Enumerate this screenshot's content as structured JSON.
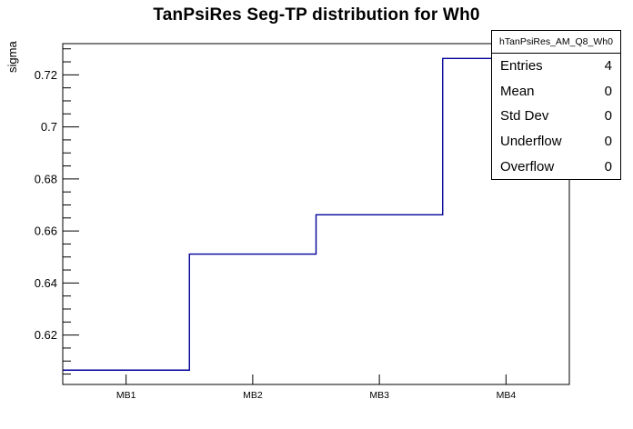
{
  "chart_data": {
    "type": "step",
    "title": "TanPsiRes Seg-TP distribution for Wh0",
    "ylabel": "sigma",
    "xlabel": "",
    "categories": [
      "MB1",
      "MB2",
      "MB3",
      "MB4"
    ],
    "values": [
      0.6065,
      0.6511,
      0.6662,
      0.7263
    ],
    "ylim": [
      0.601,
      0.732
    ],
    "yticks": [
      {
        "value": 0.62,
        "label": "0.62"
      },
      {
        "value": 0.64,
        "label": "0.64"
      },
      {
        "value": 0.66,
        "label": "0.66"
      },
      {
        "value": 0.68,
        "label": "0.68"
      },
      {
        "value": 0.7,
        "label": "0.7"
      },
      {
        "value": 0.72,
        "label": "0.72"
      }
    ],
    "y_minor_step": 0.005,
    "grid": false,
    "legend_position": "none",
    "line_color": "#000099",
    "frame_color": "#000000",
    "background_color": "#ffffff"
  },
  "stats_box": {
    "title": "hTanPsiRes_AM_Q8_Wh0",
    "rows": [
      {
        "label": "Entries",
        "value": "4"
      },
      {
        "label": "Mean",
        "value": "0"
      },
      {
        "label": "Std Dev",
        "value": "0"
      },
      {
        "label": "Underflow",
        "value": "0"
      },
      {
        "label": "Overflow",
        "value": "0"
      }
    ]
  }
}
